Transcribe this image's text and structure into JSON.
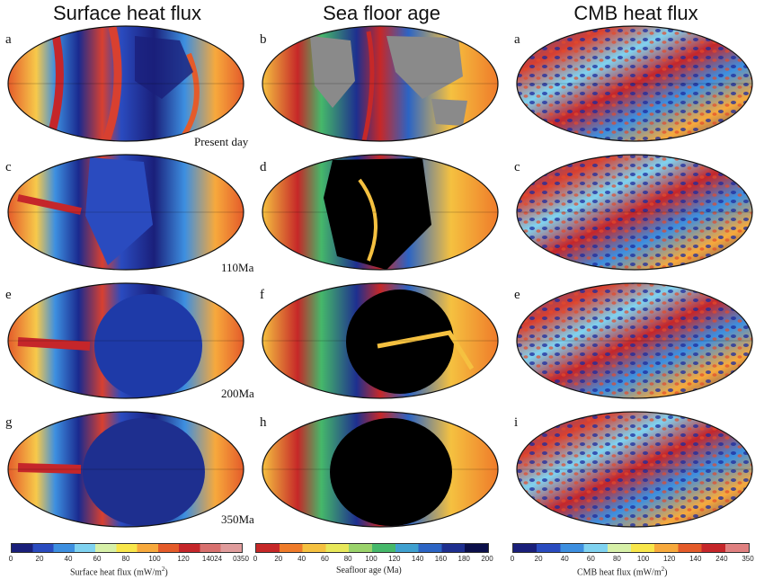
{
  "columns": [
    {
      "title": "Surface heat flux"
    },
    {
      "title": "Sea floor age"
    },
    {
      "title": "CMB heat flux"
    }
  ],
  "panels": [
    [
      "a",
      "b",
      "a"
    ],
    [
      "c",
      "d",
      "c"
    ],
    [
      "e",
      "f",
      "e"
    ],
    [
      "g",
      "h",
      "i"
    ]
  ],
  "time_labels": [
    "Present day",
    "110Ma",
    "200Ma",
    "350Ma"
  ],
  "colorbars": {
    "surface": {
      "ticks": [
        "0",
        "20",
        "40",
        "60",
        "80",
        "100",
        "120",
        "14024",
        "0350"
      ],
      "label": "Surface heat flux (mW/m",
      "label_sup": "2",
      "label_end": ")",
      "colors": [
        "#1a1f7a",
        "#2a4bbf",
        "#3d8fe0",
        "#7fd2f0",
        "#d6f0a8",
        "#f8e64a",
        "#f7a93c",
        "#e45b2a",
        "#c5262a",
        "#d8706e",
        "#e09c9c"
      ]
    },
    "seafloor": {
      "ticks": [
        "0",
        "20",
        "40",
        "60",
        "80",
        "100",
        "120",
        "140",
        "160",
        "180",
        "200"
      ],
      "label": "Seafloor age (Ma)",
      "colors": [
        "#c62828",
        "#ef7b2a",
        "#f5c140",
        "#e8e85a",
        "#9ad36b",
        "#45b86a",
        "#3fa0cf",
        "#2c64c4",
        "#1e2f8f",
        "#0b0f4a"
      ]
    },
    "cmb": {
      "ticks": [
        "0",
        "20",
        "40",
        "60",
        "80",
        "100",
        "120",
        "140",
        "240",
        "350"
      ],
      "label": "CMB heat flux (mW/m",
      "label_sup": "2",
      "label_end": ")",
      "colors": [
        "#1a1f7a",
        "#2a4bbf",
        "#3d8fe0",
        "#7fd2f0",
        "#d6f0a8",
        "#f8e64a",
        "#f7a93c",
        "#e45b2a",
        "#c5262a",
        "#e08080"
      ]
    }
  }
}
